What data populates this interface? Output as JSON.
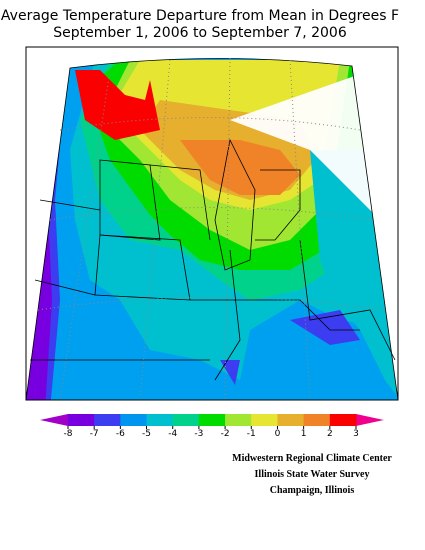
{
  "title": [
    "Average Temperature Departure from Mean in Degrees F",
    "September 1, 2006 to September 7, 2006"
  ],
  "legend": {
    "ticks": [
      -8,
      -7,
      -6,
      -5,
      -4,
      -3,
      -2,
      -1,
      0,
      1,
      2,
      3
    ],
    "low_color": "#a000c8",
    "high_color": "#f0008c",
    "colors": [
      "#7800e0",
      "#3c3cf0",
      "#0096f0",
      "#00c0d0",
      "#00d28c",
      "#00dc00",
      "#a0e632",
      "#e6e632",
      "#e6af2d",
      "#f08228",
      "#fa0000"
    ]
  },
  "credits": [
    "Midwestern Regional Climate Center",
    "Illinois State Water Survey",
    "Champaign, Illinois"
  ]
}
